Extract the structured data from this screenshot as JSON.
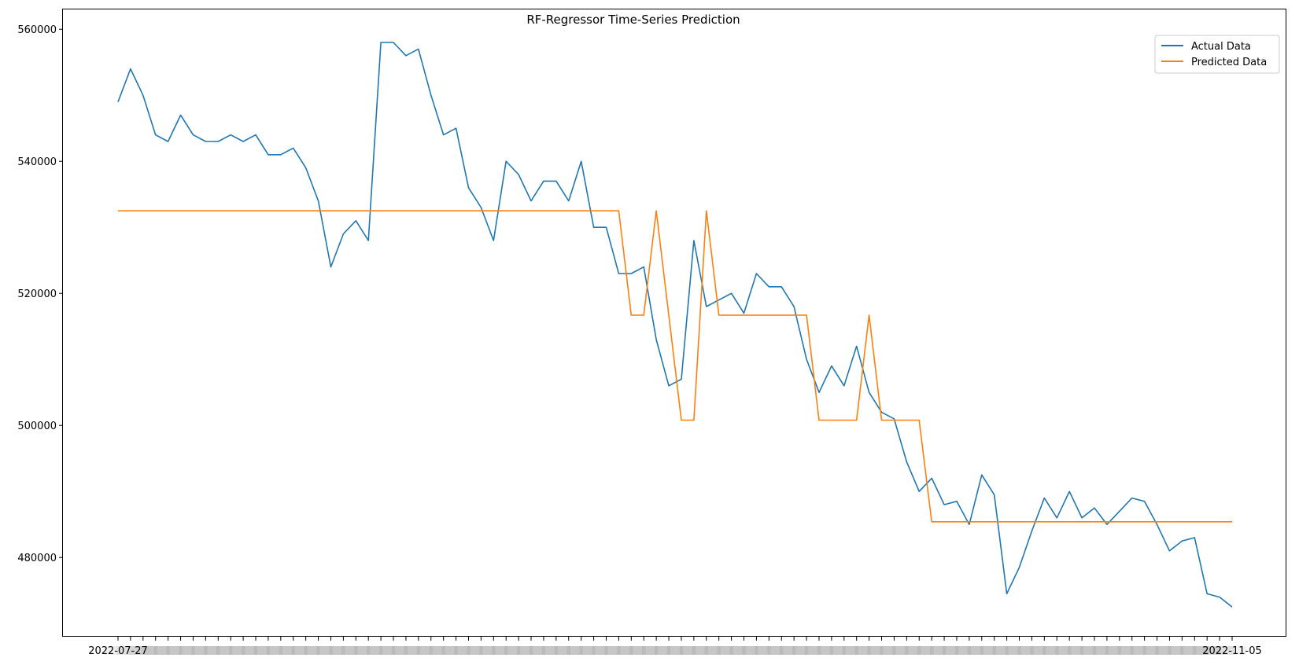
{
  "chart_data": {
    "type": "line",
    "title": "RF-Regressor Time-Series Prediction",
    "xlabel": "",
    "ylabel": "",
    "x_tick_labels_visible": [
      "2022-07-27",
      "2022-11-05"
    ],
    "ylim": [
      468000,
      563000
    ],
    "yticks": [
      480000,
      500000,
      520000,
      540000,
      560000
    ],
    "grid": false,
    "legend_position": "top-right",
    "series": [
      {
        "name": "Actual Data",
        "color": "#1f77b4",
        "values": [
          549000,
          554000,
          550000,
          544000,
          543000,
          547000,
          544000,
          543000,
          543000,
          544000,
          543000,
          544000,
          541000,
          541000,
          542000,
          539000,
          534000,
          524000,
          529000,
          531000,
          528000,
          558000,
          558000,
          556000,
          557000,
          550000,
          544000,
          545000,
          536000,
          533000,
          528000,
          540000,
          538000,
          534000,
          537000,
          537000,
          534000,
          540000,
          530000,
          530000,
          523000,
          523000,
          524000,
          513000,
          506000,
          507000,
          528000,
          518000,
          519000,
          520000,
          517000,
          523000,
          521000,
          521000,
          518000,
          510000,
          505000,
          509000,
          506000,
          512000,
          505000,
          502000,
          501000,
          494500,
          490000,
          492000,
          488000,
          488500,
          485000,
          492500,
          489500,
          474500,
          478500,
          484000,
          489000,
          486000,
          490000,
          486000,
          487500,
          485000,
          487000,
          489000,
          488500,
          485000,
          481000,
          482500,
          483000,
          474500,
          474000,
          472500
        ]
      },
      {
        "name": "Predicted Data",
        "color": "#ff7f0e",
        "values": [
          532500,
          532500,
          532500,
          532500,
          532500,
          532500,
          532500,
          532500,
          532500,
          532500,
          532500,
          532500,
          532500,
          532500,
          532500,
          532500,
          532500,
          532500,
          532500,
          532500,
          532500,
          532500,
          532500,
          532500,
          532500,
          532500,
          532500,
          532500,
          532500,
          532500,
          532500,
          532500,
          532500,
          532500,
          532500,
          532500,
          532500,
          532500,
          532500,
          532500,
          532500,
          516700,
          516700,
          532500,
          516700,
          500800,
          500800,
          532500,
          516700,
          516700,
          516700,
          516700,
          516700,
          516700,
          516700,
          516700,
          500800,
          500800,
          500800,
          500800,
          516700,
          500800,
          500800,
          500800,
          500800,
          485400,
          485400,
          485400,
          485400,
          485400,
          485400,
          485400,
          485400,
          485400,
          485400,
          485400,
          485400,
          485400,
          485400,
          485400,
          485400,
          485400,
          485400,
          485400,
          485400,
          485400,
          485400,
          485400,
          485400,
          485400
        ]
      }
    ]
  }
}
